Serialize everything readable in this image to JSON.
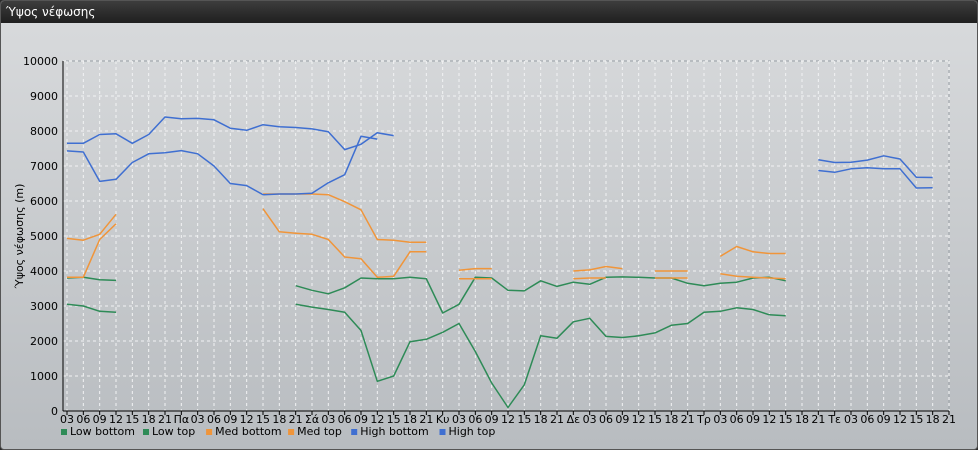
{
  "window": {
    "title": "Ύψος νέφωσης"
  },
  "chart_data": {
    "type": "line",
    "title": "",
    "xlabel": "",
    "ylabel": "Ύψος νέφωσης (m)",
    "ylim": [
      0,
      10000
    ],
    "yticks": [
      0,
      1000,
      2000,
      3000,
      4000,
      5000,
      6000,
      7000,
      8000,
      9000,
      10000
    ],
    "grid": true,
    "legend_position": "bottom-left",
    "categories": [
      "03",
      "06",
      "09",
      "12",
      "15",
      "18",
      "21",
      "Πα",
      "03",
      "06",
      "09",
      "12",
      "15",
      "18",
      "21",
      "Σά",
      "03",
      "06",
      "09",
      "12",
      "15",
      "18",
      "21",
      "Κυ",
      "03",
      "06",
      "09",
      "12",
      "15",
      "18",
      "21",
      "Δε",
      "03",
      "06",
      "09",
      "12",
      "15",
      "18",
      "21",
      "Τρ",
      "03",
      "06",
      "09",
      "12",
      "15",
      "18",
      "21",
      "Τε",
      "03",
      "06",
      "09",
      "12",
      "15",
      "18",
      "21"
    ],
    "series": [
      {
        "name": "Low bottom",
        "color": "#2e8b57",
        "values": [
          3050,
          3000,
          2850,
          2820,
          null,
          null,
          null,
          null,
          null,
          null,
          null,
          null,
          null,
          null,
          3050,
          2970,
          2900,
          2820,
          2300,
          850,
          1000,
          1980,
          2050,
          2250,
          2500,
          1700,
          800,
          100,
          750,
          2150,
          2080,
          2550,
          2650,
          2130,
          2100,
          2150,
          2230,
          2450,
          2500,
          2820,
          2850,
          2950,
          2900,
          2750,
          2720,
          null,
          null,
          null,
          null,
          null,
          null,
          null,
          null,
          null,
          null
        ]
      },
      {
        "name": "Low top",
        "color": "#2e8b57",
        "values": [
          3800,
          3820,
          3750,
          3730,
          null,
          null,
          null,
          null,
          null,
          null,
          null,
          null,
          null,
          null,
          3580,
          3450,
          3350,
          3520,
          3800,
          3780,
          3780,
          3820,
          3780,
          2800,
          3050,
          3820,
          3800,
          3450,
          3430,
          3720,
          3560,
          3680,
          3620,
          3820,
          3830,
          3820,
          3800,
          3800,
          3650,
          3580,
          3650,
          3680,
          3800,
          3820,
          3720,
          null,
          null,
          null,
          null,
          null,
          null,
          null,
          null,
          null,
          null
        ]
      },
      {
        "name": "Med bottom",
        "color": "#f0953a",
        "values": [
          3820,
          3820,
          4900,
          5350,
          null,
          null,
          null,
          null,
          null,
          null,
          null,
          null,
          5780,
          5120,
          5080,
          5050,
          4900,
          4400,
          4350,
          3820,
          3850,
          4550,
          4550,
          null,
          3780,
          3780,
          3780,
          null,
          null,
          null,
          null,
          3780,
          3800,
          3800,
          null,
          null,
          3800,
          3800,
          3800,
          null,
          3920,
          3850,
          3820,
          3800,
          3780,
          null,
          null,
          null,
          null,
          null,
          null,
          null,
          null,
          null,
          null
        ]
      },
      {
        "name": "Med top",
        "color": "#f0953a",
        "values": [
          4930,
          4880,
          5050,
          5620,
          null,
          null,
          null,
          null,
          null,
          null,
          null,
          null,
          6200,
          6200,
          6200,
          6200,
          6180,
          5980,
          5750,
          4900,
          4880,
          4820,
          4820,
          null,
          4020,
          4070,
          4070,
          null,
          null,
          null,
          null,
          4000,
          4030,
          4130,
          4070,
          null,
          4000,
          4000,
          4000,
          null,
          4420,
          4700,
          4550,
          4500,
          4500,
          null,
          null,
          null,
          null,
          null,
          null,
          null,
          null,
          null,
          null
        ]
      },
      {
        "name": "High bottom",
        "color": "#3f6fd1",
        "values": [
          7430,
          7400,
          6560,
          6620,
          7100,
          7350,
          7380,
          7440,
          7350,
          7000,
          6500,
          6440,
          6180,
          6200,
          6200,
          6220,
          6520,
          6750,
          7850,
          7770,
          null,
          null,
          null,
          null,
          null,
          null,
          null,
          null,
          null,
          null,
          null,
          null,
          null,
          null,
          null,
          null,
          null,
          null,
          null,
          null,
          null,
          null,
          null,
          null,
          null,
          null,
          6870,
          6820,
          6920,
          6950,
          6920,
          6920,
          6370,
          6380,
          null
        ]
      },
      {
        "name": "High top",
        "color": "#3f6fd1",
        "values": [
          7650,
          7650,
          7900,
          7920,
          7650,
          7900,
          8400,
          8350,
          8360,
          8320,
          8080,
          8020,
          8180,
          8120,
          8100,
          8060,
          7980,
          7470,
          7620,
          7950,
          7870,
          null,
          null,
          null,
          null,
          null,
          null,
          null,
          null,
          null,
          null,
          null,
          null,
          null,
          null,
          null,
          null,
          null,
          null,
          null,
          null,
          null,
          null,
          null,
          null,
          null,
          7180,
          7100,
          7110,
          7170,
          7290,
          7200,
          6680,
          6670,
          null
        ]
      }
    ]
  }
}
